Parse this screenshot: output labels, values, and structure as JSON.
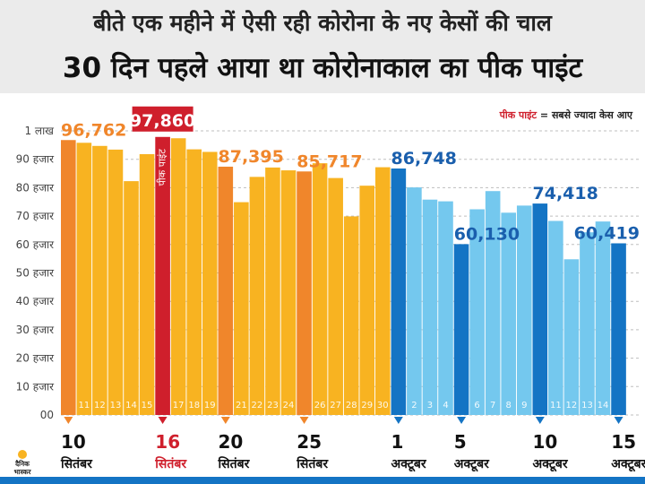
{
  "header": {
    "title_line1": "बीते एक महीने में ऐसी रही कोरोना के नए केसों की चाल",
    "title_line2": "30 दिन पहले आया था कोरोनाकाल का पीक पाइंट"
  },
  "chart_data": {
    "type": "bar",
    "ylim": [
      0,
      100000
    ],
    "yticks": [
      {
        "value": 0,
        "label": "00"
      },
      {
        "value": 10000,
        "label": "10 हजार"
      },
      {
        "value": 20000,
        "label": "20 हजार"
      },
      {
        "value": 30000,
        "label": "30 हजार"
      },
      {
        "value": 40000,
        "label": "40 हजार"
      },
      {
        "value": 50000,
        "label": "50 हजार"
      },
      {
        "value": 60000,
        "label": "60 हजार"
      },
      {
        "value": 70000,
        "label": "70 हजार"
      },
      {
        "value": 80000,
        "label": "80 हजार"
      },
      {
        "value": 90000,
        "label": "90 हजार"
      },
      {
        "value": 100000,
        "label": "1 लाख"
      }
    ],
    "grid": true,
    "legend": {
      "key": "पीक पाइंट",
      "text": " = सबसे ज्यादा केस आए",
      "placement": "top-right"
    },
    "peak_label": "पीक पाइंट",
    "categories": [
      "10",
      "11",
      "12",
      "13",
      "14",
      "15",
      "16",
      "17",
      "18",
      "19",
      "20",
      "21",
      "22",
      "23",
      "24",
      "25",
      "26",
      "27",
      "28",
      "29",
      "30",
      "1",
      "2",
      "3",
      "4",
      "5",
      "6",
      "7",
      "8",
      "9",
      "10",
      "11",
      "12",
      "13",
      "14",
      "15"
    ],
    "values": [
      96762,
      95800,
      94700,
      93400,
      82300,
      91800,
      97860,
      97400,
      93500,
      92600,
      87395,
      74900,
      83800,
      87100,
      86100,
      85717,
      88600,
      83400,
      69900,
      80700,
      87200,
      86748,
      80100,
      75800,
      75200,
      60130,
      72400,
      78800,
      71200,
      73700,
      74418,
      68300,
      54800,
      64300,
      68100,
      60419
    ],
    "months": [
      "sep",
      "sep",
      "sep",
      "sep",
      "sep",
      "sep",
      "sep",
      "sep",
      "sep",
      "sep",
      "sep",
      "sep",
      "sep",
      "sep",
      "sep",
      "sep",
      "sep",
      "sep",
      "sep",
      "sep",
      "sep",
      "oct",
      "oct",
      "oct",
      "oct",
      "oct",
      "oct",
      "oct",
      "oct",
      "oct",
      "oct",
      "oct",
      "oct",
      "oct",
      "oct",
      "oct"
    ],
    "peak_index": 6,
    "highlighted": [
      {
        "index": 0,
        "value_label": "96,762",
        "date": "10",
        "month": "सितंबर"
      },
      {
        "index": 6,
        "value_label": "97,860",
        "date": "16",
        "month": "सितंबर"
      },
      {
        "index": 10,
        "value_label": "87,395",
        "date": "20",
        "month": "सितंबर"
      },
      {
        "index": 15,
        "value_label": "85,717",
        "date": "25",
        "month": "सितंबर"
      },
      {
        "index": 21,
        "value_label": "86,748",
        "date": "1",
        "month": "अक्टूबर"
      },
      {
        "index": 25,
        "value_label": "60,130",
        "date": "5",
        "month": "अक्टूबर"
      },
      {
        "index": 30,
        "value_label": "74,418",
        "date": "10",
        "month": "अक्टूबर"
      },
      {
        "index": 35,
        "value_label": "60,419",
        "date": "15",
        "month": "अक्टूबर"
      }
    ],
    "colors": {
      "sep": "#f8b321",
      "sep_highlight": "#f0862b",
      "oct": "#74c8ee",
      "oct_highlight": "#1474c4",
      "peak": "#cf1f2c",
      "sep_label": "#f0862b",
      "oct_label": "#1a5fad",
      "peak_label": "#ffffff",
      "grid": "#bfbfbf",
      "axis_text": "#444444"
    }
  },
  "branding": {
    "logo_text": [
      "दैनिक",
      "भास्कर"
    ]
  }
}
